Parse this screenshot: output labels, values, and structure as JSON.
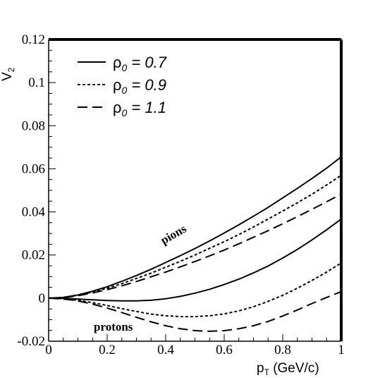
{
  "chart_data": {
    "type": "line",
    "title": "",
    "xlabel": "p",
    "xlabel_sub": "T",
    "xlabel_units": " (GeV/c)",
    "ylabel": "V",
    "ylabel_sub": "2",
    "xlim": [
      0,
      1
    ],
    "ylim": [
      -0.02,
      0.12
    ],
    "xticks": [
      0,
      0.2,
      0.4,
      0.6,
      0.8,
      1
    ],
    "xtick_labels": [
      "0",
      "0.2",
      "0.4",
      "0.6",
      "0.8",
      "1"
    ],
    "yticks": [
      -0.02,
      0,
      0.02,
      0.04,
      0.06,
      0.08,
      0.1,
      0.12
    ],
    "ytick_labels": [
      "-0.02",
      "0",
      "0.02",
      "0.04",
      "0.06",
      "0.08",
      "0.1",
      "0.12"
    ],
    "grid": false,
    "legend_position": "top-left",
    "legend": [
      {
        "symbol": "ρ",
        "sub": "0",
        "text": " = 0.7",
        "dash": "solid"
      },
      {
        "symbol": "ρ",
        "sub": "0",
        "text": " = 0.9",
        "dash": "dotted"
      },
      {
        "symbol": "ρ",
        "sub": "0",
        "text": " = 1.1",
        "dash": "dashed"
      }
    ],
    "annotations": {
      "pions": "pions",
      "protons": "protons"
    },
    "x": [
      0,
      0.05,
      0.1,
      0.15,
      0.2,
      0.25,
      0.3,
      0.35,
      0.4,
      0.45,
      0.5,
      0.55,
      0.6,
      0.65,
      0.7,
      0.75,
      0.8,
      0.85,
      0.9,
      0.95,
      1.0
    ],
    "series": [
      {
        "group": "pions",
        "rho0": "0.7",
        "dash": "solid",
        "values": [
          0,
          0.0003,
          0.0015,
          0.0032,
          0.0053,
          0.0078,
          0.0105,
          0.0134,
          0.0165,
          0.0197,
          0.023,
          0.0265,
          0.0302,
          0.034,
          0.038,
          0.0421,
          0.0465,
          0.0509,
          0.0555,
          0.0603,
          0.0655
        ]
      },
      {
        "group": "pions",
        "rho0": "0.9",
        "dash": "dotted",
        "values": [
          0,
          0.0003,
          0.0013,
          0.0028,
          0.0046,
          0.0067,
          0.0091,
          0.0116,
          0.0143,
          0.0171,
          0.02,
          0.0231,
          0.0262,
          0.0295,
          0.033,
          0.0367,
          0.0404,
          0.0442,
          0.0482,
          0.0525,
          0.057
        ]
      },
      {
        "group": "pions",
        "rho0": "1.1",
        "dash": "dashed",
        "values": [
          0,
          0.0002,
          0.0011,
          0.0024,
          0.0039,
          0.0057,
          0.0077,
          0.0099,
          0.0121,
          0.0145,
          0.017,
          0.0196,
          0.0223,
          0.0252,
          0.0282,
          0.0313,
          0.0345,
          0.0378,
          0.0412,
          0.0447,
          0.0483
        ]
      },
      {
        "group": "protons",
        "rho0": "0.7",
        "dash": "solid",
        "values": [
          0,
          -0.0001,
          -0.0004,
          -0.0008,
          -0.0011,
          -0.0013,
          -0.0013,
          -0.001,
          -0.0003,
          0.0008,
          0.0023,
          0.0041,
          0.0063,
          0.0088,
          0.0117,
          0.0149,
          0.0186,
          0.0226,
          0.027,
          0.0317,
          0.0367
        ]
      },
      {
        "group": "protons",
        "rho0": "0.9",
        "dash": "dotted",
        "values": [
          0,
          -0.0003,
          -0.001,
          -0.0021,
          -0.0034,
          -0.0049,
          -0.0062,
          -0.0074,
          -0.0082,
          -0.0086,
          -0.0086,
          -0.0082,
          -0.0073,
          -0.0059,
          -0.004,
          -0.0015,
          0.0013,
          0.0046,
          0.0082,
          0.0121,
          0.0163
        ]
      },
      {
        "group": "protons",
        "rho0": "1.1",
        "dash": "dashed",
        "values": [
          0,
          -0.0004,
          -0.0013,
          -0.0028,
          -0.0046,
          -0.0067,
          -0.0089,
          -0.011,
          -0.0128,
          -0.0142,
          -0.0151,
          -0.0154,
          -0.0151,
          -0.0142,
          -0.0128,
          -0.0108,
          -0.0083,
          -0.0055,
          -0.0025,
          0.0003,
          0.003
        ]
      }
    ]
  }
}
